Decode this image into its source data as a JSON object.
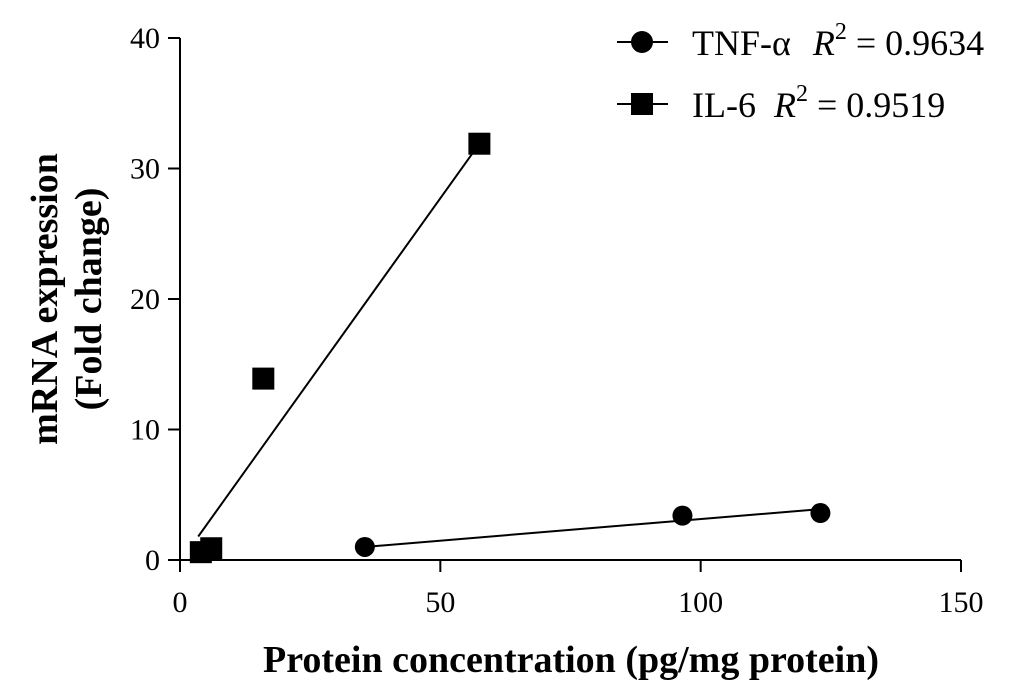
{
  "chart_data": {
    "type": "scatter",
    "xlabel": "Protein concentration (pg/mg protein)",
    "ylabel_lines": [
      "mRNA expression",
      "(Fold change)"
    ],
    "xlim": [
      0,
      150
    ],
    "ylim": [
      0,
      40
    ],
    "x_ticks": [
      "0",
      "50",
      "100",
      "150"
    ],
    "y_ticks": [
      "0",
      "10",
      "20",
      "30",
      "40"
    ],
    "grid": false,
    "legend_position": "top-right",
    "series": [
      {
        "name": "TNF-α",
        "marker": "circle",
        "r2_value": "0.9634",
        "points": [
          {
            "x": 35.5,
            "y": 1.0
          },
          {
            "x": 96.5,
            "y": 3.4
          },
          {
            "x": 123.0,
            "y": 3.6
          }
        ],
        "fit_line": [
          {
            "x": 35.5,
            "y": 1.0
          },
          {
            "x": 123.0,
            "y": 3.9
          }
        ]
      },
      {
        "name": "IL-6",
        "marker": "square",
        "r2_value": "0.9519",
        "points": [
          {
            "x": 4.0,
            "y": 0.6
          },
          {
            "x": 6.0,
            "y": 0.9
          },
          {
            "x": 16.0,
            "y": 13.9
          },
          {
            "x": 57.5,
            "y": 31.9
          }
        ],
        "fit_line": [
          {
            "x": 3.5,
            "y": 1.8
          },
          {
            "x": 57.5,
            "y": 31.9
          }
        ]
      }
    ]
  },
  "legend": {
    "r_symbol": "R",
    "r_exponent": "2",
    "equals": " = "
  }
}
